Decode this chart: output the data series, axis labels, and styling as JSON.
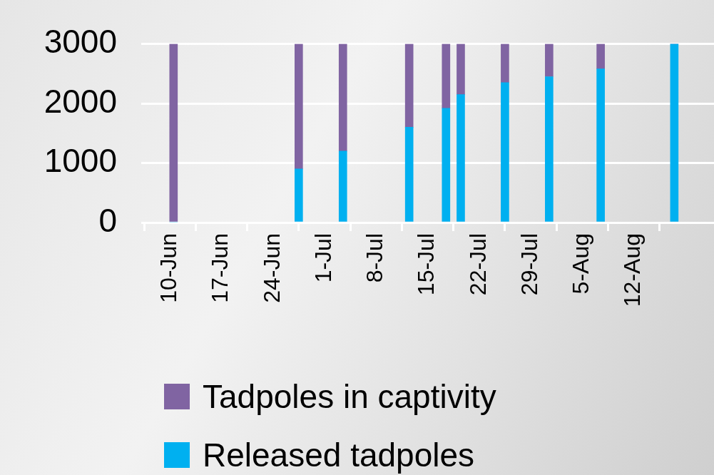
{
  "chart_data": {
    "type": "bar",
    "stacked": true,
    "x": [
      "--06-10",
      "--06-27",
      "--07-03",
      "--07-12",
      "--07-17",
      "--07-19",
      "--07-25",
      "--07-31",
      "--08-07",
      "--08-17"
    ],
    "series": [
      {
        "name": "Released tadpoles",
        "color": "#00b0f0",
        "values": [
          0,
          900,
          1200,
          1600,
          1920,
          2150,
          2350,
          2450,
          2580,
          3000
        ]
      },
      {
        "name": "Tadpoles in captivity",
        "color": "#8064a2",
        "values": [
          3000,
          2100,
          1800,
          1400,
          1080,
          850,
          650,
          550,
          420,
          0
        ]
      }
    ],
    "xlim": [
      "--06-10",
      "--08-19"
    ],
    "xticks": [
      {
        "value": "--06-10",
        "label": "10-Jun"
      },
      {
        "value": "--06-17",
        "label": "17-Jun"
      },
      {
        "value": "--06-24",
        "label": "24-Jun"
      },
      {
        "value": "--07-01",
        "label": "1-Jul"
      },
      {
        "value": "--07-08",
        "label": "8-Jul"
      },
      {
        "value": "--07-15",
        "label": "15-Jul"
      },
      {
        "value": "--07-22",
        "label": "22-Jul"
      },
      {
        "value": "--07-29",
        "label": "29-Jul"
      },
      {
        "value": "--08-05",
        "label": "5-Aug"
      },
      {
        "value": "--08-12",
        "label": "12-Aug"
      }
    ],
    "ylim": [
      0,
      3000
    ],
    "yticks": [
      0,
      1000,
      2000,
      3000
    ],
    "grid": "y",
    "legend": "bottom"
  }
}
